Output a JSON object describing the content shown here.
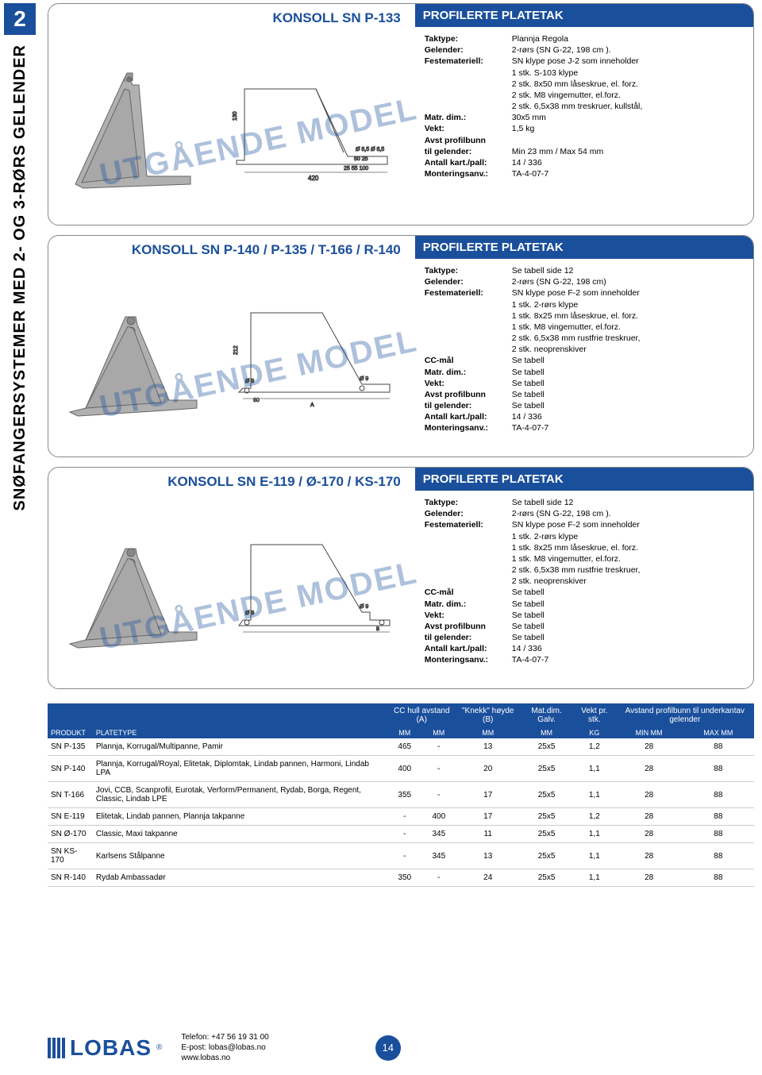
{
  "page_number": "2",
  "side_title": "SNØFANGERSYSTEMER MED 2- OG 3-RØRS GELENDER",
  "watermark": "UTGÅENDE MODEL",
  "products": [
    {
      "title": "KONSOLL SN P-133",
      "header": "PROFILERTE PLATETAK",
      "specs": [
        {
          "label": "Taktype:",
          "val": "Plannja Regola"
        },
        {
          "label": "Gelender:",
          "val": "2-rørs (SN G-22, 198 cm )."
        },
        {
          "label": "Festemateriell:",
          "val": "SN klype pose J-2 som inneholder"
        },
        {
          "label": "",
          "val": "1 stk. S-103 klype"
        },
        {
          "label": "",
          "val": "2 stk. 8x50 mm låseskrue, el. forz."
        },
        {
          "label": "",
          "val": "2 stk. M8 vingemutter, el.forz."
        },
        {
          "label": "",
          "val": "2 stk. 6,5x38 mm treskruer, kullstål,"
        },
        {
          "label": "Matr. dim.:",
          "val": "30x5 mm"
        },
        {
          "label": "Vekt:",
          "val": "1,5 kg"
        },
        {
          "label": "Avst profilbunn",
          "val": ""
        },
        {
          "label": "til gelender:",
          "val": "Min 23 mm / Max 54 mm"
        },
        {
          "label": "Antall kart./pall:",
          "val": "14 / 336"
        },
        {
          "label": "Monteringsanv.:",
          "val": "TA-4-07-7"
        }
      ]
    },
    {
      "title": "KONSOLL SN P-140 / P-135 / T-166 / R-140",
      "header": "PROFILERTE PLATETAK",
      "specs": [
        {
          "label": "Taktype:",
          "val": "Se tabell side 12"
        },
        {
          "label": "Gelender:",
          "val": "2-rørs (SN G-22, 198 cm)"
        },
        {
          "label": "Festemateriell:",
          "val": "SN klype pose F-2 som inneholder"
        },
        {
          "label": "",
          "val": "1 stk. 2-rørs klype"
        },
        {
          "label": "",
          "val": "1 stk. 8x25 mm låseskrue, el. forz."
        },
        {
          "label": "",
          "val": "1 stk. M8 vingemutter, el.forz."
        },
        {
          "label": "",
          "val": "2 stk. 6,5x38 mm rustfrie treskruer,"
        },
        {
          "label": "",
          "val": "2 stk. neoprenskiver"
        },
        {
          "label": "CC-mål",
          "val": "Se tabell"
        },
        {
          "label": "Matr. dim.:",
          "val": "Se tabell"
        },
        {
          "label": "Vekt:",
          "val": "Se tabell"
        },
        {
          "label": "Avst profilbunn",
          "val": "Se tabell"
        },
        {
          "label": "til gelender:",
          "val": "Se tabell"
        },
        {
          "label": "Antall kart./pall:",
          "val": "14 / 336"
        },
        {
          "label": "Monteringsanv.:",
          "val": "TA-4-07-7"
        }
      ]
    },
    {
      "title": "KONSOLL SN E-119 / Ø-170 / KS-170",
      "header": "PROFILERTE PLATETAK",
      "specs": [
        {
          "label": "Taktype:",
          "val": "Se tabell side 12"
        },
        {
          "label": "Gelender:",
          "val": "2-rørs (SN G-22, 198 cm )."
        },
        {
          "label": "Festemateriell:",
          "val": "SN klype pose  F-2 som inneholder"
        },
        {
          "label": "",
          "val": "1 stk. 2-rørs klype"
        },
        {
          "label": "",
          "val": "1 stk. 8x25 mm låseskrue, el. forz."
        },
        {
          "label": "",
          "val": "1 stk. M8 vingemutter, el.forz."
        },
        {
          "label": "",
          "val": "2 stk. 6,5x38 mm rustfrie treskruer,"
        },
        {
          "label": "",
          "val": "2 stk. neoprenskiver"
        },
        {
          "label": "CC-mål",
          "val": "Se tabell"
        },
        {
          "label": "Matr. dim.:",
          "val": "Se tabell"
        },
        {
          "label": "Vekt:",
          "val": "Se tabell"
        },
        {
          "label": "Avst profilbunn",
          "val": "Se tabell"
        },
        {
          "label": "til gelender:",
          "val": "Se tabell"
        },
        {
          "label": "Antall kart./pall:",
          "val": "14 / 336"
        },
        {
          "label": "Monteringsanv.:",
          "val": "TA-4-07-7"
        }
      ]
    }
  ],
  "table": {
    "header_top": [
      "",
      "",
      "CC hull avstand (A)",
      "",
      "\"Knekk\" høyde (B)",
      "Mat.dim. Galv.",
      "Vekt pr. stk.",
      "Avstand profilbunn til underkantav gelender",
      ""
    ],
    "header_cols": [
      "PRODUKT",
      "PLATETYPE",
      "MM",
      "MM",
      "MM",
      "MM",
      "KG",
      "MIN MM",
      "MAX MM"
    ],
    "rows": [
      [
        "SN P-135",
        "Plannja, Korrugal/Multipanne, Pamir",
        "465",
        "-",
        "13",
        "25x5",
        "1,2",
        "28",
        "88"
      ],
      [
        "SN P-140",
        "Plannja, Korrugal/Royal, Elitetak, Diplomtak, Lindab pannen, Harmoni, Lindab LPA",
        "400",
        "-",
        "20",
        "25x5",
        "1,1",
        "28",
        "88"
      ],
      [
        "SN T-166",
        "Jovi, CCB, Scanprofil, Eurotak, Verform/Permanent, Rydab, Borga, Regent, Classic, Lindab LPE",
        "355",
        "-",
        "17",
        "25x5",
        "1,1",
        "28",
        "88"
      ],
      [
        "SN E-119",
        "Elitetak, Lindab pannen, Plannja takpanne",
        "-",
        "400",
        "17",
        "25x5",
        "1,2",
        "28",
        "88"
      ],
      [
        "SN Ø-170",
        "Classic, Maxi takpanne",
        "-",
        "345",
        "11",
        "25x5",
        "1,1",
        "28",
        "88"
      ],
      [
        "SN KS-170",
        "Karlsens Stålpanne",
        "-",
        "345",
        "13",
        "25x5",
        "1,1",
        "28",
        "88"
      ],
      [
        "SN R-140",
        "Rydab Ambassadør",
        "350",
        "-",
        "24",
        "25x5",
        "1,1",
        "28",
        "88"
      ]
    ]
  },
  "footer": {
    "logo": "LOBAS",
    "reg": "®",
    "contact": [
      "Telefon: +47 56 19 31 00",
      "E-post: lobas@lobas.no",
      "www.lobas.no"
    ],
    "page": "14"
  },
  "colors": {
    "primary": "#1a4f9c",
    "border": "#888888",
    "row_border": "#cccccc"
  }
}
